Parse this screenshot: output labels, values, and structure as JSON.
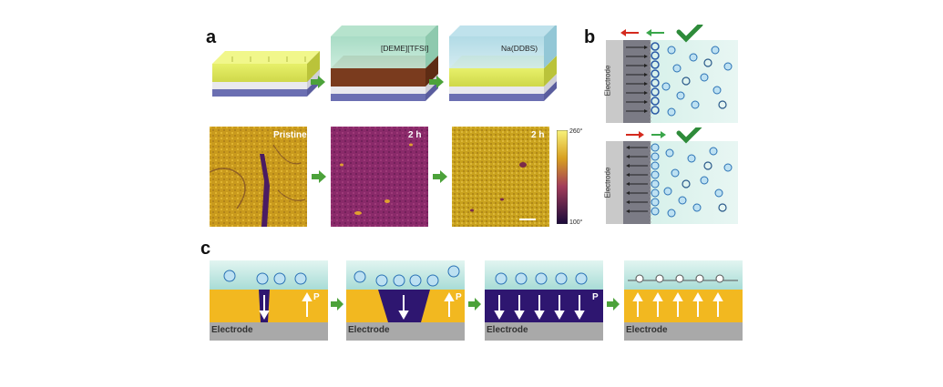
{
  "panels": {
    "a": "a",
    "b": "b",
    "c": "c"
  },
  "panel_a": {
    "solutions": [
      "[DEME][TFSI]",
      "Na(DDBS)"
    ],
    "image_labels": [
      "Pristine",
      "2 h",
      "2 h"
    ],
    "colorbar": {
      "max": "260°",
      "min": "100°"
    }
  },
  "panel_b": {
    "electrode_label": "Electrode",
    "colors": {
      "check": "#2e8b3a",
      "arrow_red": "#d42a1e",
      "arrow_green": "#3aa64a"
    }
  },
  "panel_c": {
    "electrode_label": "Electrode",
    "polarization_label": "P"
  },
  "colors": {
    "ferro_yellow": "#f2b820",
    "ferro_purple": "#2e1670",
    "electrode_gray": "#a9a9a9",
    "electrolyte_top": "#a8dcd6",
    "ion_blue": "#2a72b5",
    "flow_arrow": "#4ca23a"
  }
}
